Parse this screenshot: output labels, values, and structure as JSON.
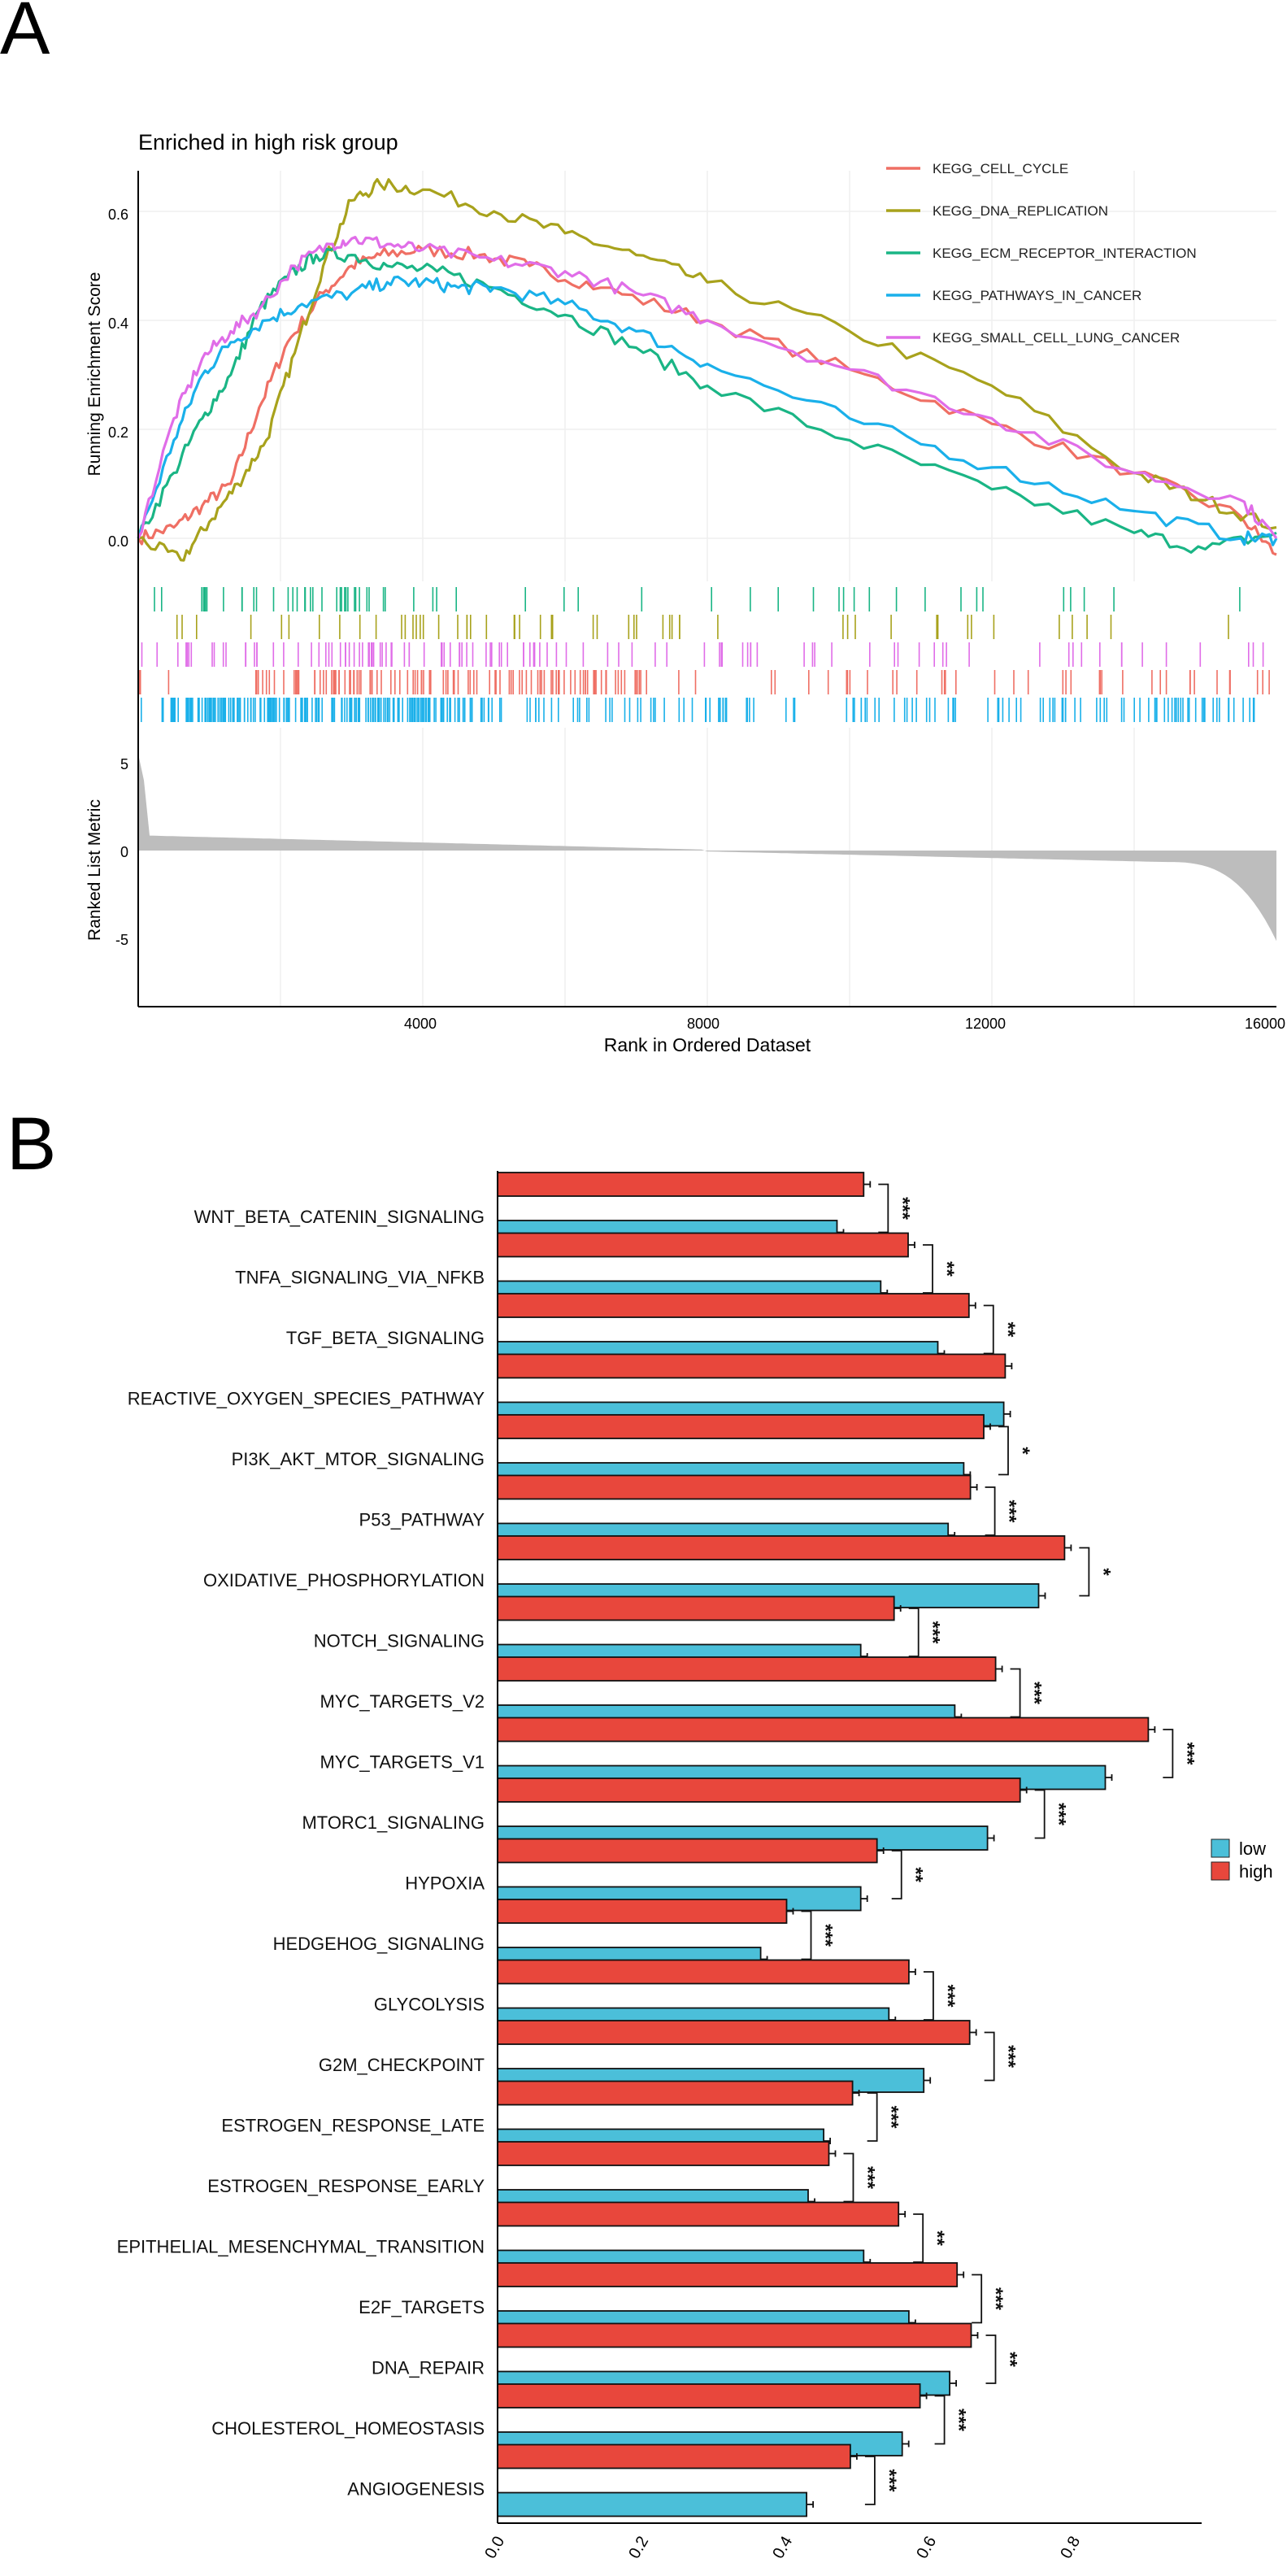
{
  "panelA": {
    "letter": "A",
    "title": "Enriched in high risk group",
    "ylabel_es": "Running Enrichment Score",
    "ylabel_metric": "Ranked List Metric",
    "xlabel": "Rank in Ordered Dataset",
    "es_ticks": [
      "0.0",
      "0.2",
      "0.4",
      "0.6"
    ],
    "metric_ticks": [
      "5",
      "0",
      "-5"
    ],
    "x_ticks": [
      "4000",
      "8000",
      "12000",
      "16000"
    ]
  },
  "panelB": {
    "letter": "B",
    "legend": [
      {
        "label": "low",
        "color": "#4bbfd9"
      },
      {
        "label": "high",
        "color": "#e8473c"
      }
    ],
    "x_ticks": [
      "0.0",
      "0.2",
      "0.4",
      "0.6",
      "0.8"
    ]
  },
  "chart_data": [
    {
      "type": "line",
      "title": "Enriched in high risk group",
      "xlabel": "Rank in Ordered Dataset",
      "ylabel": "Running Enrichment Score",
      "xlim": [
        0,
        16000
      ],
      "ylim": [
        -0.05,
        0.67
      ],
      "series": [
        {
          "name": "KEGG_CELL_CYCLE",
          "color": "#ef6f64",
          "x": [
            0,
            500,
            900,
            1300,
            1700,
            2100,
            2600,
            3000,
            3400,
            4000,
            4800,
            5500,
            6500,
            8000,
            10000,
            12000,
            14000,
            15500,
            16000
          ],
          "y": [
            0.0,
            0.02,
            0.06,
            0.1,
            0.24,
            0.36,
            0.45,
            0.5,
            0.52,
            0.53,
            0.52,
            0.5,
            0.46,
            0.4,
            0.31,
            0.21,
            0.12,
            0.04,
            -0.03
          ]
        },
        {
          "name": "KEGG_DNA_REPLICATION",
          "color": "#a8a21c",
          "x": [
            0,
            600,
            1000,
            1400,
            1800,
            2200,
            2600,
            3000,
            3400,
            4000,
            5000,
            6000,
            7000,
            8000,
            10000,
            12000,
            14000,
            15000,
            16000
          ],
          "y": [
            0.0,
            -0.04,
            0.03,
            0.1,
            0.18,
            0.34,
            0.5,
            0.62,
            0.65,
            0.64,
            0.6,
            0.56,
            0.52,
            0.47,
            0.38,
            0.28,
            0.12,
            0.07,
            0.02
          ]
        },
        {
          "name": "KEGG_ECM_RECEPTOR_INTERACTION",
          "color": "#1ab585",
          "x": [
            0,
            500,
            900,
            1300,
            1700,
            2100,
            2500,
            3000,
            3500,
            4200,
            5000,
            6000,
            7000,
            8000,
            10000,
            12000,
            14000,
            15000,
            16000
          ],
          "y": [
            0.0,
            0.12,
            0.22,
            0.3,
            0.42,
            0.48,
            0.52,
            0.52,
            0.5,
            0.49,
            0.46,
            0.41,
            0.35,
            0.28,
            0.18,
            0.09,
            0.01,
            -0.02,
            0.01
          ]
        },
        {
          "name": "KEGG_PATHWAYS_IN_CANCER",
          "color": "#1ab0ea",
          "x": [
            0,
            500,
            900,
            1300,
            1800,
            2300,
            3000,
            3500,
            4000,
            4500,
            5000,
            6000,
            7000,
            8000,
            10000,
            12000,
            14000,
            15500,
            16000
          ],
          "y": [
            0.0,
            0.18,
            0.3,
            0.36,
            0.4,
            0.43,
            0.45,
            0.47,
            0.47,
            0.46,
            0.46,
            0.43,
            0.38,
            0.32,
            0.22,
            0.13,
            0.05,
            0.0,
            0.0
          ]
        },
        {
          "name": "KEGG_SMALL_CELL_LUNG_CANCER",
          "color": "#e06de8",
          "x": [
            0,
            500,
            900,
            1300,
            1700,
            2200,
            2700,
            3000,
            3500,
            4000,
            5000,
            6000,
            7000,
            8000,
            10000,
            12000,
            14000,
            15500,
            16000
          ],
          "y": [
            0.0,
            0.22,
            0.33,
            0.38,
            0.42,
            0.5,
            0.54,
            0.55,
            0.54,
            0.53,
            0.51,
            0.49,
            0.45,
            0.4,
            0.31,
            0.22,
            0.12,
            0.07,
            0.0
          ]
        }
      ]
    },
    {
      "type": "bar",
      "orientation": "horizontal",
      "xlim": [
        0,
        0.95
      ],
      "categories": [
        "WNT_BETA_CATENIN_SIGNALING",
        "TNFA_SIGNALING_VIA_NFKB",
        "TGF_BETA_SIGNALING",
        "REACTIVE_OXYGEN_SPECIES_PATHWAY",
        "PI3K_AKT_MTOR_SIGNALING",
        "P53_PATHWAY",
        "OXIDATIVE_PHOSPHORYLATION",
        "NOTCH_SIGNALING",
        "MYC_TARGETS_V2",
        "MYC_TARGETS_V1",
        "MTORC1_SIGNALING",
        "HYPOXIA",
        "HEDGEHOG_SIGNALING",
        "GLYCOLYSIS",
        "G2M_CHECKPOINT",
        "ESTROGEN_RESPONSE_LATE",
        "ESTROGEN_RESPONSE_EARLY",
        "EPITHELIAL_MESENCHYMAL_TRANSITION",
        "E2F_TARGETS",
        "DNA_REPAIR",
        "CHOLESTEROL_HOMEOSTASIS",
        "ANGIOGENESIS"
      ],
      "series": [
        {
          "name": "high",
          "color": "#e8473c",
          "values": [
            0.494,
            0.554,
            0.636,
            0.685,
            0.656,
            0.638,
            0.765,
            0.535,
            0.672,
            0.878,
            0.705,
            0.512,
            0.39,
            0.555,
            0.637,
            0.479,
            0.447,
            0.541,
            0.62,
            0.639,
            0.57,
            0.476
          ]
        },
        {
          "name": "low",
          "color": "#4bbfd9",
          "values": [
            0.458,
            0.517,
            0.594,
            0.683,
            0.629,
            0.608,
            0.73,
            0.49,
            0.617,
            0.82,
            0.661,
            0.49,
            0.355,
            0.528,
            0.575,
            0.44,
            0.419,
            0.494,
            0.555,
            0.61,
            0.546,
            0.417
          ]
        }
      ],
      "significance": [
        "***",
        "**",
        "**",
        "",
        "*",
        "***",
        "*",
        "***",
        "***",
        "***",
        "***",
        "**",
        "***",
        "***",
        "***",
        "***",
        "***",
        "**",
        "***",
        "**",
        "***",
        "***"
      ]
    }
  ]
}
